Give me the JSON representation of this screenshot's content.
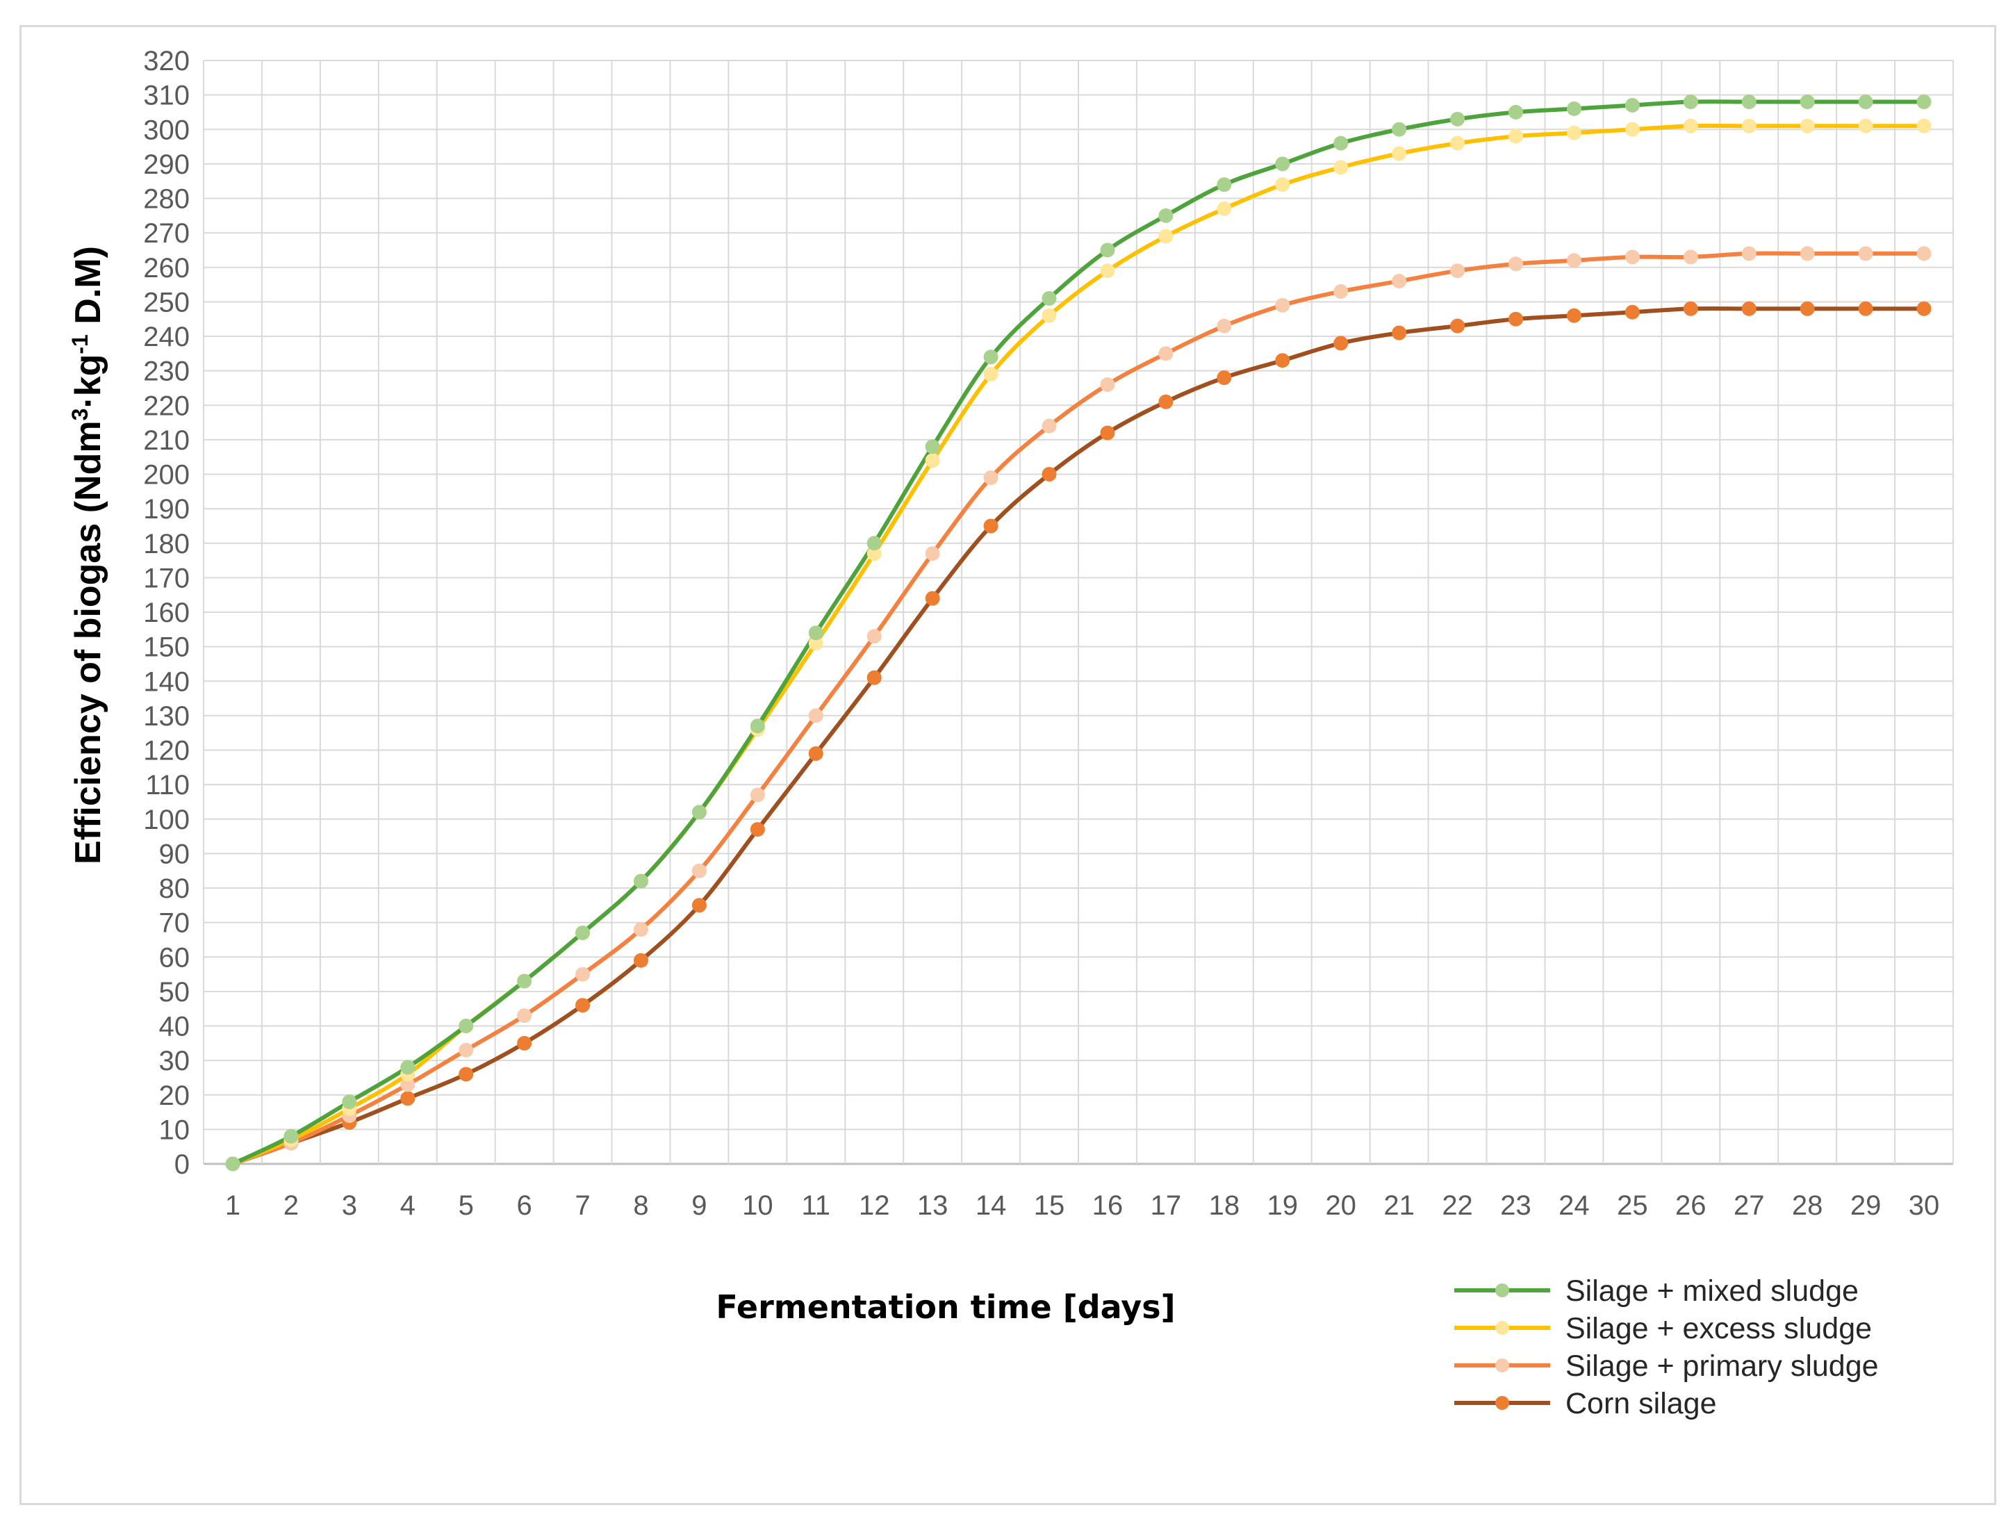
{
  "chart_data": {
    "type": "line",
    "title": "",
    "xlabel": "Fermentation time [days]",
    "ylabel": {
      "prefix": "Efficiency of biogas (Ndm",
      "sup1": "3",
      "mid": "·kg",
      "sup2": "-1",
      "suffix": " D.M)"
    },
    "x": [
      1,
      2,
      3,
      4,
      5,
      6,
      7,
      8,
      9,
      10,
      11,
      12,
      13,
      14,
      15,
      16,
      17,
      18,
      19,
      20,
      21,
      22,
      23,
      24,
      25,
      26,
      27,
      28,
      29,
      30
    ],
    "xlim": [
      1,
      30
    ],
    "ylim": [
      0,
      320
    ],
    "ytick_step": 10,
    "grid": true,
    "legend_position": "bottom-right",
    "series": [
      {
        "name": "Silage + mixed sludge",
        "color": "#4ea33b",
        "marker_color": "#a9d18e",
        "values": [
          0,
          8,
          18,
          28,
          40,
          53,
          67,
          82,
          102,
          127,
          154,
          180,
          208,
          234,
          251,
          265,
          275,
          284,
          290,
          296,
          300,
          303,
          305,
          306,
          307,
          308,
          308,
          308,
          308,
          308
        ]
      },
      {
        "name": "Silage + excess sludge",
        "color": "#ffc000",
        "marker_color": "#ffe699",
        "values": [
          0,
          7,
          16,
          26,
          40,
          53,
          67,
          82,
          102,
          126,
          151,
          177,
          204,
          229,
          246,
          259,
          269,
          277,
          284,
          289,
          293,
          296,
          298,
          299,
          300,
          301,
          301,
          301,
          301,
          301
        ]
      },
      {
        "name": "Silage + primary sludge",
        "color": "#f4813f",
        "marker_color": "#f8cbad",
        "values": [
          0,
          6,
          14,
          23,
          33,
          43,
          55,
          68,
          85,
          107,
          130,
          153,
          177,
          199,
          214,
          226,
          235,
          243,
          249,
          253,
          256,
          259,
          261,
          262,
          263,
          263,
          264,
          264,
          264,
          264
        ]
      },
      {
        "name": "Corn silage",
        "color": "#a0501e",
        "marker_color": "#ed7d31",
        "values": [
          0,
          6,
          12,
          19,
          26,
          35,
          46,
          59,
          75,
          97,
          119,
          141,
          164,
          185,
          200,
          212,
          221,
          228,
          233,
          238,
          241,
          243,
          245,
          246,
          247,
          248,
          248,
          248,
          248,
          248
        ]
      }
    ]
  }
}
